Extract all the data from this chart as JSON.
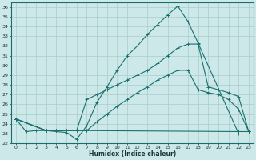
{
  "xlabel": "Humidex (Indice chaleur)",
  "bg_color": "#cce8e8",
  "grid_color": "#aacccc",
  "line_color": "#1a7070",
  "xlim": [
    -0.5,
    23.5
  ],
  "ylim": [
    22,
    36.5
  ],
  "xticks": [
    0,
    1,
    2,
    3,
    4,
    5,
    6,
    7,
    8,
    9,
    10,
    11,
    12,
    13,
    14,
    15,
    16,
    17,
    18,
    19,
    20,
    21,
    22,
    23
  ],
  "yticks": [
    22,
    23,
    24,
    25,
    26,
    27,
    28,
    29,
    30,
    31,
    32,
    33,
    34,
    35,
    36
  ],
  "lines": [
    {
      "x": [
        0,
        1,
        2,
        3,
        5,
        6,
        7,
        8,
        9,
        10,
        11,
        12,
        13,
        14,
        15,
        16,
        17,
        18,
        22
      ],
      "y": [
        24.5,
        23.2,
        23.3,
        23.3,
        23.1,
        22.4,
        23.8,
        26.2,
        27.8,
        29.5,
        31.0,
        32.0,
        33.2,
        34.2,
        35.2,
        36.1,
        34.5,
        32.3,
        23.0
      ]
    },
    {
      "x": [
        0,
        3,
        4,
        5,
        6,
        7,
        22,
        23
      ],
      "y": [
        24.5,
        23.3,
        23.3,
        23.3,
        23.3,
        23.3,
        23.2,
        23.2
      ]
    },
    {
      "x": [
        0,
        3,
        4,
        5,
        6,
        7,
        8,
        9,
        10,
        11,
        12,
        13,
        14,
        15,
        16,
        17,
        18,
        19,
        20,
        21,
        22,
        23
      ],
      "y": [
        24.5,
        23.3,
        23.3,
        23.3,
        23.3,
        26.5,
        27.0,
        27.5,
        28.0,
        28.5,
        29.0,
        29.5,
        30.2,
        31.0,
        31.8,
        32.2,
        32.2,
        27.8,
        27.5,
        27.2,
        26.8,
        23.2
      ]
    },
    {
      "x": [
        0,
        3,
        4,
        5,
        6,
        7,
        8,
        9,
        10,
        11,
        12,
        13,
        14,
        15,
        16,
        17,
        18,
        19,
        20,
        21,
        22,
        23
      ],
      "y": [
        24.5,
        23.3,
        23.3,
        23.3,
        23.3,
        23.3,
        24.2,
        25.0,
        25.8,
        26.5,
        27.2,
        27.8,
        28.5,
        29.0,
        29.5,
        29.5,
        27.5,
        27.2,
        27.0,
        26.5,
        25.5,
        23.2
      ]
    }
  ]
}
